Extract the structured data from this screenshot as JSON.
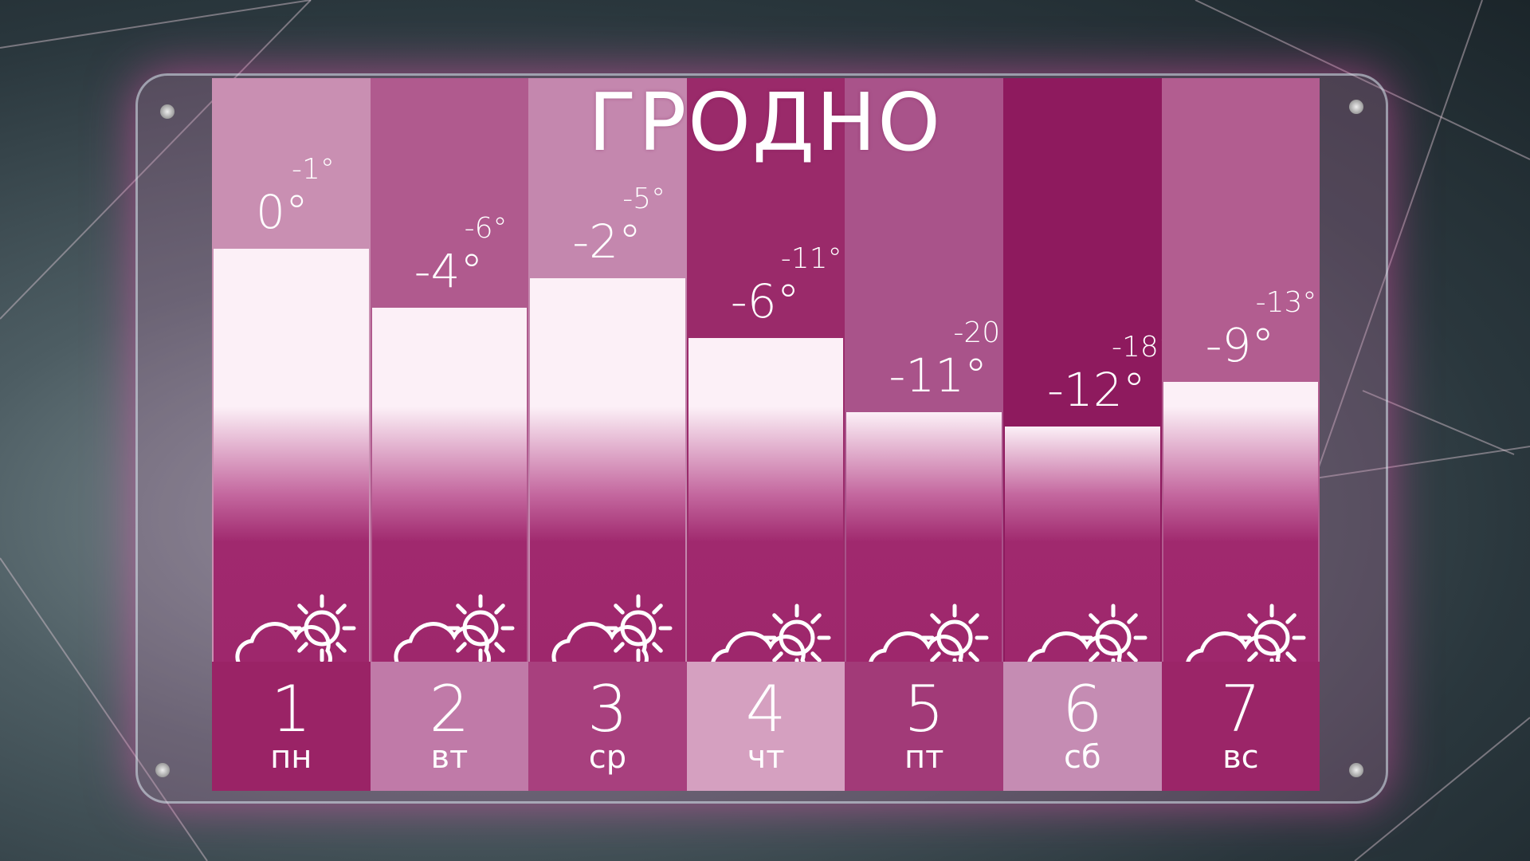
{
  "title": "ГРОДНО",
  "colors": {
    "accent": "#a0296e",
    "bar": "#fcf0f7"
  },
  "days": [
    {
      "date": "1",
      "dow": "пн",
      "day_temp": "0°",
      "night_temp": "-1°",
      "day_value": 0,
      "icon": "cloud-sun-snow-icon",
      "top_color": "#c98fb2",
      "date_color": "#9a2366"
    },
    {
      "date": "2",
      "dow": "вт",
      "day_temp": "-4°",
      "night_temp": "-6°",
      "day_value": -4,
      "icon": "cloud-sun-snow-icon",
      "top_color": "#b05a8e",
      "date_color": "#c07aa8"
    },
    {
      "date": "3",
      "dow": "ср",
      "day_temp": "-2°",
      "night_temp": "-5°",
      "day_value": -2,
      "icon": "cloud-sun-snow-icon",
      "top_color": "#c487ae",
      "date_color": "#a8407e"
    },
    {
      "date": "4",
      "dow": "чт",
      "day_temp": "-6°",
      "night_temp": "-11°",
      "day_value": -6,
      "icon": "cloud-sun-icon",
      "top_color": "#9a2a6a",
      "date_color": "#d5a0c0"
    },
    {
      "date": "5",
      "dow": "пт",
      "day_temp": "-11°",
      "night_temp": "-20°",
      "day_value": -11,
      "icon": "cloud-sun-icon",
      "top_color": "#a9538a",
      "date_color": "#a23a78"
    },
    {
      "date": "6",
      "dow": "сб",
      "day_temp": "-12°",
      "night_temp": "-18°",
      "day_value": -12,
      "icon": "cloud-sun-icon",
      "top_color": "#8e1a5e",
      "date_color": "#c58cb3"
    },
    {
      "date": "7",
      "dow": "вс",
      "day_temp": "-9°",
      "night_temp": "-13°",
      "day_value": -9,
      "icon": "cloud-sun-icon",
      "top_color": "#b25d90",
      "date_color": "#9b2568"
    }
  ]
}
